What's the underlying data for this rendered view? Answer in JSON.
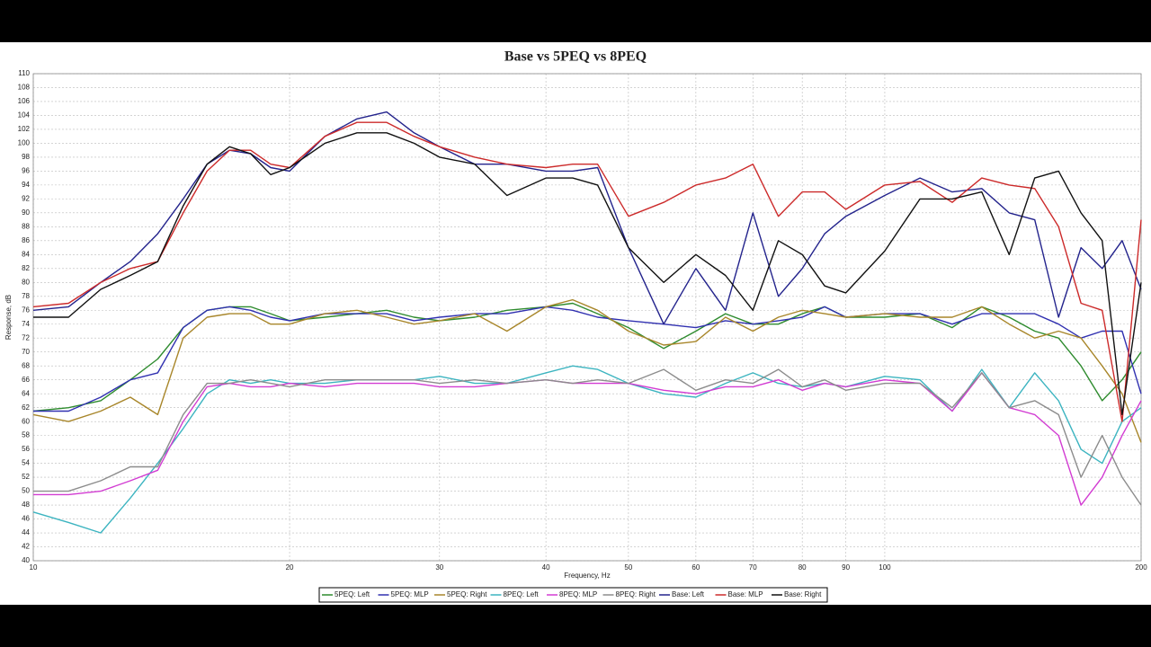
{
  "chart_data": {
    "type": "line",
    "title": "Base vs 5PEQ vs 8PEQ",
    "x_label": "Frequency, Hz",
    "y_label": "Response, dB",
    "xscale": "log",
    "grid": true,
    "legend": "bottom",
    "xlim": [
      10,
      200
    ],
    "ylim": [
      40,
      110
    ],
    "xticks": [
      10,
      20,
      30,
      40,
      50,
      60,
      70,
      80,
      90,
      100,
      200
    ],
    "yticks": [
      40,
      42,
      44,
      46,
      48,
      50,
      52,
      54,
      56,
      58,
      60,
      62,
      64,
      66,
      68,
      70,
      72,
      74,
      76,
      78,
      80,
      82,
      84,
      86,
      88,
      90,
      92,
      94,
      96,
      98,
      100,
      102,
      104,
      106,
      108,
      110
    ],
    "x": [
      10,
      11,
      12,
      13,
      14,
      15,
      16,
      17,
      18,
      19,
      20,
      22,
      24,
      26,
      28,
      30,
      33,
      36,
      40,
      43,
      46,
      50,
      55,
      60,
      65,
      70,
      75,
      80,
      85,
      90,
      100,
      110,
      120,
      130,
      140,
      150,
      160,
      170,
      180,
      190,
      200
    ],
    "series": [
      {
        "name": "5PEQ: Left",
        "color": "#2e8b2e",
        "values": [
          61.5,
          62,
          63,
          66,
          69,
          73.5,
          76,
          76.5,
          76.5,
          75.5,
          74.5,
          75,
          75.5,
          76,
          75,
          74.5,
          75,
          76,
          76.5,
          77,
          75.5,
          73.5,
          70.5,
          73,
          75.5,
          74,
          74,
          75.5,
          76.5,
          75,
          75,
          75.5,
          73.5,
          76.5,
          75,
          73,
          72,
          68,
          63,
          66,
          70
        ]
      },
      {
        "name": "5PEQ: MLP",
        "color": "#3030b0",
        "values": [
          61.5,
          61.5,
          63.5,
          66,
          67,
          73.5,
          76,
          76.5,
          76,
          75,
          74.5,
          75.5,
          75.5,
          75.5,
          74.5,
          75,
          75.5,
          75.5,
          76.5,
          76,
          75,
          74.5,
          74,
          73.5,
          74.5,
          74,
          74.5,
          75,
          76.5,
          75,
          75.5,
          75.5,
          74,
          75.5,
          75.5,
          75.5,
          74,
          72,
          73,
          73,
          64
        ]
      },
      {
        "name": "5PEQ: Right",
        "color": "#a8862a",
        "values": [
          61,
          60,
          61.5,
          63.5,
          61,
          72,
          75,
          75.5,
          75.5,
          74,
          74,
          75.5,
          76,
          75,
          74,
          74.5,
          75.5,
          73,
          76.5,
          77.5,
          76,
          73,
          71,
          71.5,
          75,
          73,
          75,
          76,
          75.5,
          75,
          75.5,
          75,
          75,
          76.5,
          74,
          72,
          73,
          72,
          68,
          64,
          57
        ]
      },
      {
        "name": "8PEQ: Left",
        "color": "#3cb4c0",
        "values": [
          47,
          45.5,
          44,
          49,
          54,
          59,
          64,
          66,
          65.5,
          66,
          65.5,
          65.5,
          66,
          66,
          66,
          66.5,
          65.5,
          65.5,
          67,
          68,
          67.5,
          65.5,
          64,
          63.5,
          65.5,
          67,
          65.5,
          65,
          65.5,
          65,
          66.5,
          66,
          61.5,
          67.5,
          62,
          67,
          63,
          56,
          54,
          60,
          62
        ]
      },
      {
        "name": "8PEQ: MLP",
        "color": "#d23cd2",
        "values": [
          49.5,
          49.5,
          50,
          51.5,
          53,
          60,
          65,
          65.5,
          65,
          65,
          65.5,
          65,
          65.5,
          65.5,
          65.5,
          65,
          65,
          65.5,
          66,
          65.5,
          65.5,
          65.5,
          64.5,
          64,
          65,
          65,
          66,
          64.5,
          65.5,
          65,
          66,
          65.5,
          61.5,
          67,
          62,
          61,
          58,
          48,
          52,
          58,
          63
        ]
      },
      {
        "name": "8PEQ: Right",
        "color": "#8c8c8c",
        "values": [
          50,
          50,
          51.5,
          53.5,
          53.5,
          61,
          65.5,
          65.5,
          66,
          65.5,
          65,
          66,
          66,
          66,
          66,
          65.5,
          66,
          65.5,
          66,
          65.5,
          66,
          65.5,
          67.5,
          64.5,
          66,
          65.5,
          67.5,
          65,
          66,
          64.5,
          65.5,
          65.5,
          62,
          67,
          62,
          63,
          61,
          52,
          58,
          52,
          48
        ]
      },
      {
        "name": "Base: Left",
        "color": "#23238c",
        "values": [
          76,
          76.5,
          80,
          83,
          87,
          92,
          97,
          99,
          98.5,
          96.5,
          96,
          101,
          103.5,
          104.5,
          101.5,
          99.5,
          97,
          97,
          96,
          96,
          96.5,
          85,
          74,
          82,
          76,
          90,
          78,
          82,
          87,
          89.5,
          92.5,
          95,
          93,
          93.5,
          90,
          89,
          75,
          85,
          82,
          86,
          79
        ]
      },
      {
        "name": "Base: MLP",
        "color": "#cc2a2a",
        "values": [
          76.5,
          77,
          80,
          82,
          83,
          90,
          96,
          99,
          99,
          97,
          96.5,
          101,
          103,
          103,
          101,
          99.5,
          98,
          97,
          96.5,
          97,
          97,
          89.5,
          91.5,
          94,
          95,
          97,
          89.5,
          93,
          93,
          90.5,
          94,
          94.5,
          91.5,
          95,
          94,
          93.5,
          88,
          77,
          76,
          60,
          89
        ]
      },
      {
        "name": "Base: Right",
        "color": "#111111",
        "values": [
          75,
          75,
          79,
          81,
          83,
          91,
          97,
          99.5,
          98.5,
          95.5,
          96.5,
          100,
          101.5,
          101.5,
          100,
          98,
          97,
          92.5,
          95,
          95,
          94,
          85,
          80,
          84,
          81,
          76,
          86,
          84,
          79.5,
          78.5,
          84.5,
          92,
          92,
          93,
          84,
          95,
          96,
          90,
          86,
          61,
          80
        ]
      }
    ]
  }
}
